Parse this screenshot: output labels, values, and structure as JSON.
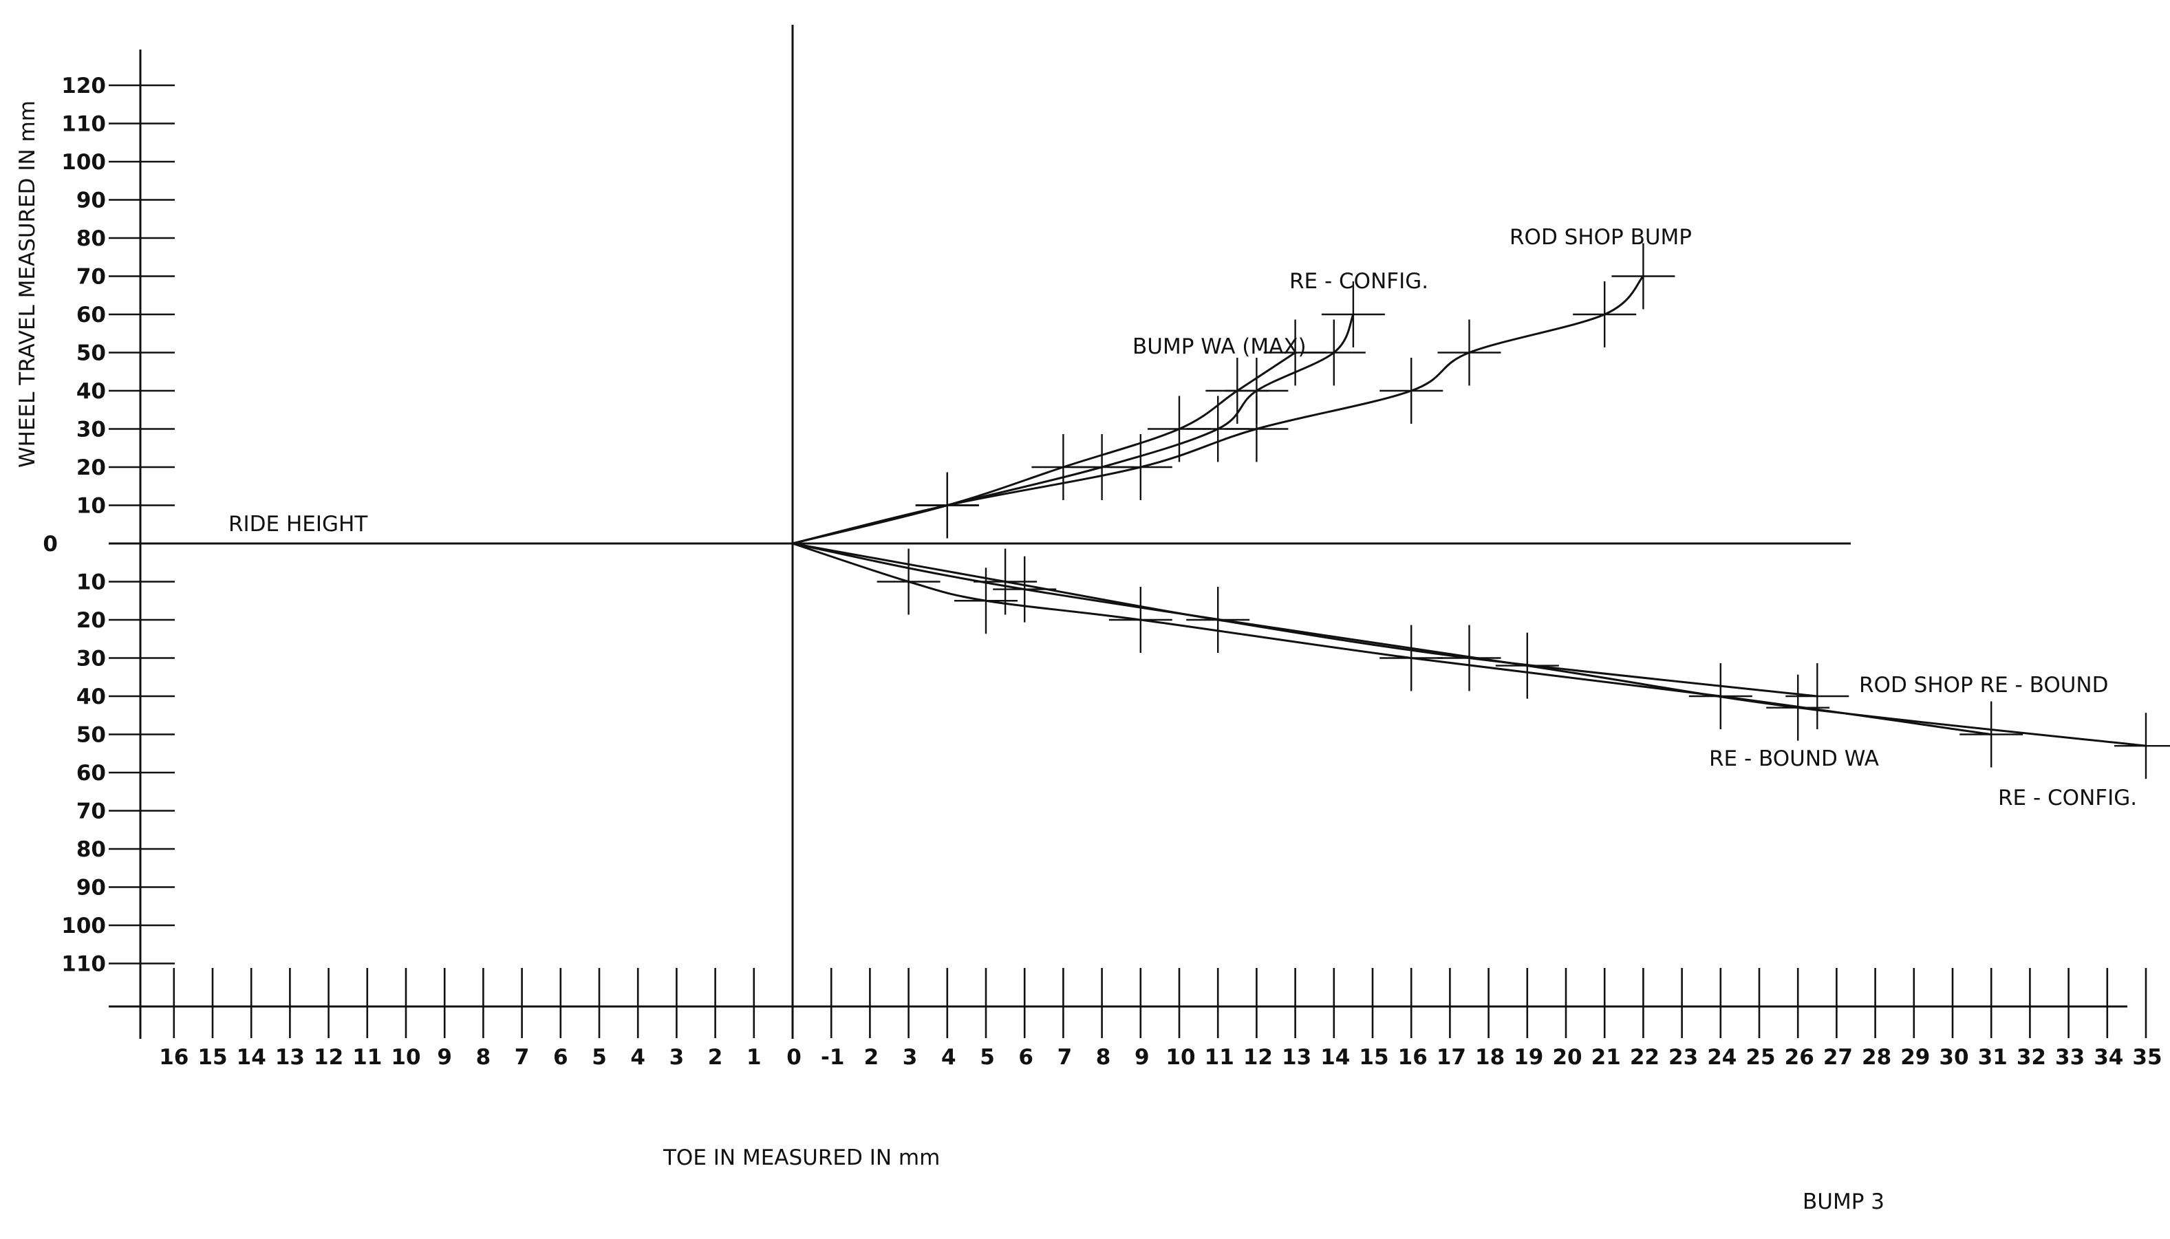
{
  "chart_data": {
    "type": "line",
    "title": "",
    "caption": "BUMP 3",
    "xlabel": "TOE IN MEASURED IN mm",
    "ylabel": "WHEEL TRAVEL MEASURED IN mm",
    "x_tick_labels_left": [
      "16",
      "15",
      "14",
      "13",
      "12",
      "11",
      "10",
      "9",
      "8",
      "7",
      "6",
      "5",
      "4",
      "3",
      "2",
      "1"
    ],
    "x_tick_labels_right": [
      "0",
      "-1",
      "2",
      "3",
      "4",
      "5",
      "6",
      "7",
      "8",
      "9",
      "10",
      "11",
      "12",
      "13",
      "14",
      "15",
      "16",
      "17",
      "18",
      "19",
      "20",
      "21",
      "22",
      "23",
      "24",
      "25",
      "26",
      "27",
      "28",
      "29",
      "30",
      "31",
      "32",
      "33",
      "34",
      "35"
    ],
    "y_tick_labels_up": [
      "120",
      "110",
      "100",
      "90",
      "80",
      "70",
      "60",
      "50",
      "40",
      "30",
      "20",
      "10"
    ],
    "y_zero_label": "0",
    "y_tick_labels_down": [
      "10",
      "20",
      "30",
      "40",
      "50",
      "60",
      "70",
      "80",
      "90",
      "100",
      "110"
    ],
    "xlim": [
      -17,
      35.8
    ],
    "ylim": [
      -120,
      130
    ],
    "grid": false,
    "reference_line": {
      "label": "RIDE HEIGHT",
      "y": 0
    },
    "series": [
      {
        "name": "ROD SHOP BUMP",
        "x": [
          0,
          4,
          9,
          12,
          16,
          17.5,
          21,
          22
        ],
        "y": [
          0,
          10,
          20,
          30,
          40,
          50,
          60,
          70
        ]
      },
      {
        "name": "RE - CONFIG.",
        "x": [
          0,
          4,
          8,
          11,
          12,
          14,
          14.5
        ],
        "y": [
          0,
          10,
          20,
          30,
          40,
          50,
          60
        ]
      },
      {
        "name": "BUMP WA (MAX)",
        "x": [
          0,
          4,
          7,
          10,
          11.5,
          13
        ],
        "y": [
          0,
          10,
          20,
          30,
          40,
          50
        ]
      },
      {
        "name": "RE - BOUND WA",
        "x": [
          0,
          3,
          5,
          9,
          16,
          24,
          31
        ],
        "y": [
          0,
          -10,
          -15,
          -20,
          -30,
          -40,
          -50
        ]
      },
      {
        "name": "ROD SHOP RE - BOUND",
        "x": [
          0,
          5.5,
          11,
          17.5,
          26.5
        ],
        "y": [
          0,
          -10,
          -20,
          -30,
          -40
        ]
      },
      {
        "name": "RE - CONFIG.",
        "x": [
          0,
          6,
          19,
          26,
          35
        ],
        "y": [
          0,
          -12,
          -32,
          -43,
          -53
        ]
      }
    ]
  }
}
